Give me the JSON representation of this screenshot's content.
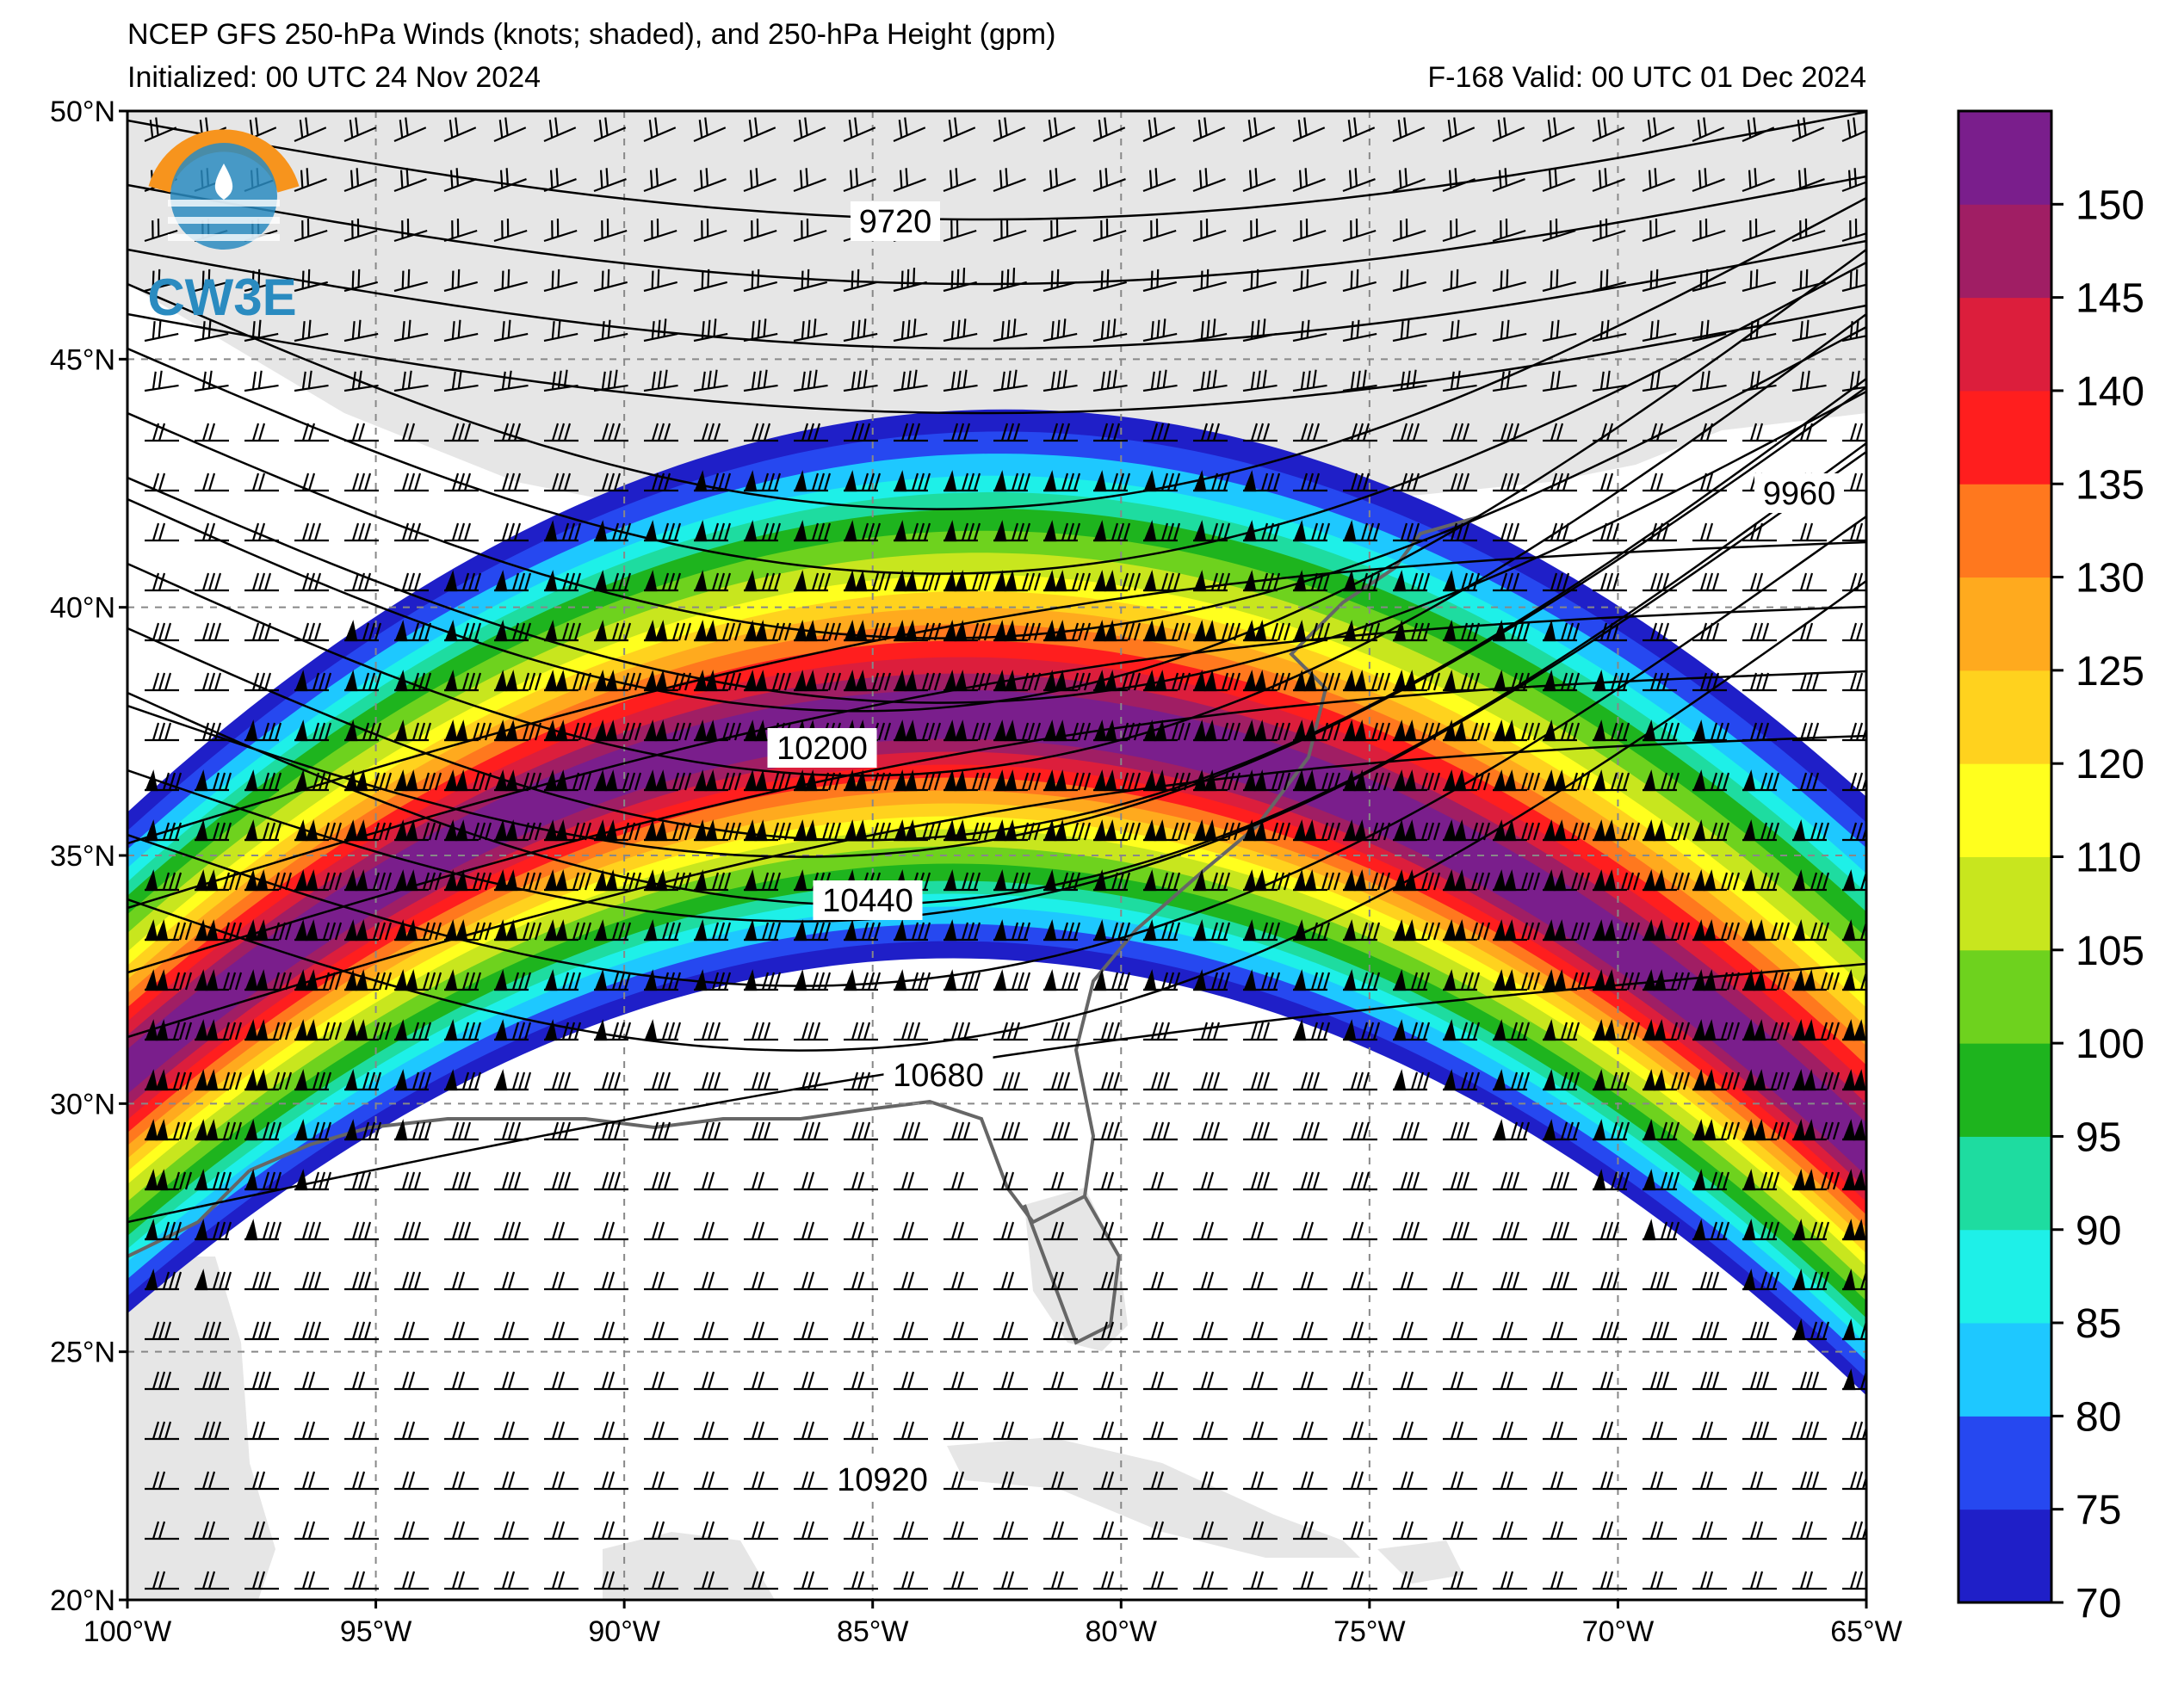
{
  "header": {
    "title": "NCEP GFS 250-hPa Winds (knots; shaded), and 250-hPa Height (gpm)",
    "initialized": "Initialized: 00 UTC 24 Nov 2024",
    "valid": "F-168  Valid: 00 UTC 01 Dec 2024"
  },
  "logo": {
    "text": "CW3E",
    "colors": {
      "orange": "#f7941d",
      "blue": "#2a8bc0"
    }
  },
  "map": {
    "region": {
      "lon_min": -100,
      "lon_max": -65,
      "lat_min": 20,
      "lat_max": 50
    },
    "lat_labels": [
      "20°N",
      "25°N",
      "30°N",
      "35°N",
      "40°N",
      "45°N",
      "50°N"
    ],
    "lon_labels": [
      "100°W",
      "95°W",
      "90°W",
      "85°W",
      "80°W",
      "75°W",
      "70°W",
      "65°W"
    ],
    "land_color": "#e6e6e6",
    "coast_color": "#666666",
    "contours": [
      {
        "value": 9720,
        "label": "9720"
      },
      {
        "value": 9960,
        "label": "9960"
      },
      {
        "value": 10200,
        "label": "10200"
      },
      {
        "value": 10440,
        "label": "10440"
      },
      {
        "value": 10680,
        "label": "10680"
      },
      {
        "value": 10920,
        "label": "10920"
      }
    ]
  },
  "colorbar": {
    "levels": [
      70,
      75,
      80,
      85,
      90,
      95,
      100,
      105,
      110,
      120,
      125,
      130,
      135,
      140,
      145,
      150,
      155
    ],
    "labels": [
      "70",
      "75",
      "80",
      "85",
      "90",
      "95",
      "100",
      "105",
      "110",
      "120",
      "125",
      "130",
      "135",
      "140",
      "145",
      "150"
    ],
    "colors": [
      "#1f1fc8",
      "#2648f0",
      "#1ec8ff",
      "#1ef0e8",
      "#1edca0",
      "#1eb41e",
      "#6ed21e",
      "#c8e61e",
      "#ffff1e",
      "#ffd21e",
      "#ffaa1e",
      "#ff781e",
      "#ff1e1e",
      "#dc1e3c",
      "#a01e64",
      "#7a1e8c"
    ]
  }
}
